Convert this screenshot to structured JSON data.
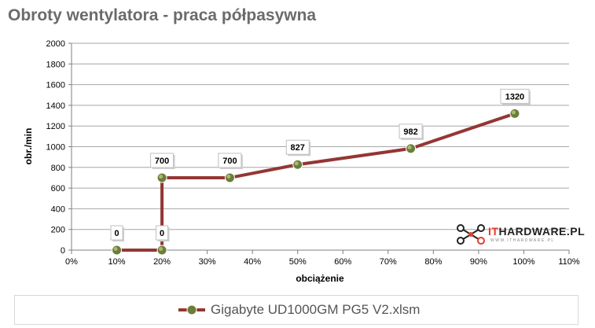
{
  "chart_data": {
    "type": "line",
    "title": "Obroty wentylatora - praca półpasywna",
    "xlabel": "obciążenie",
    "ylabel": "obr./min",
    "xlim": [
      0,
      110
    ],
    "ylim": [
      0,
      2000
    ],
    "x_ticks": [
      "0%",
      "10%",
      "20%",
      "30%",
      "40%",
      "50%",
      "60%",
      "70%",
      "80%",
      "90%",
      "100%",
      "110%"
    ],
    "y_ticks": [
      "0",
      "200",
      "400",
      "600",
      "800",
      "1000",
      "1200",
      "1400",
      "1600",
      "1800",
      "2000"
    ],
    "grid": "horizontal",
    "legend_position": "bottom",
    "series": [
      {
        "name": "Gigabyte UD1000GM PG5 V2.xlsm",
        "color": "#943634",
        "x": [
          10,
          20,
          20,
          35,
          50,
          75,
          98
        ],
        "y": [
          0,
          0,
          700,
          700,
          827,
          982,
          1320
        ],
        "labels": [
          "0",
          "0",
          "700",
          "700",
          "827",
          "982",
          "1320"
        ]
      }
    ]
  },
  "logo": {
    "text_it": "IT",
    "text_rest": "HARDWARE.PL",
    "sub": "WWW.ITHARDWARE.PL",
    "colors": {
      "it": "#e63b2e",
      "rest": "#222222"
    },
    "icon": "network-nodes-icon"
  }
}
